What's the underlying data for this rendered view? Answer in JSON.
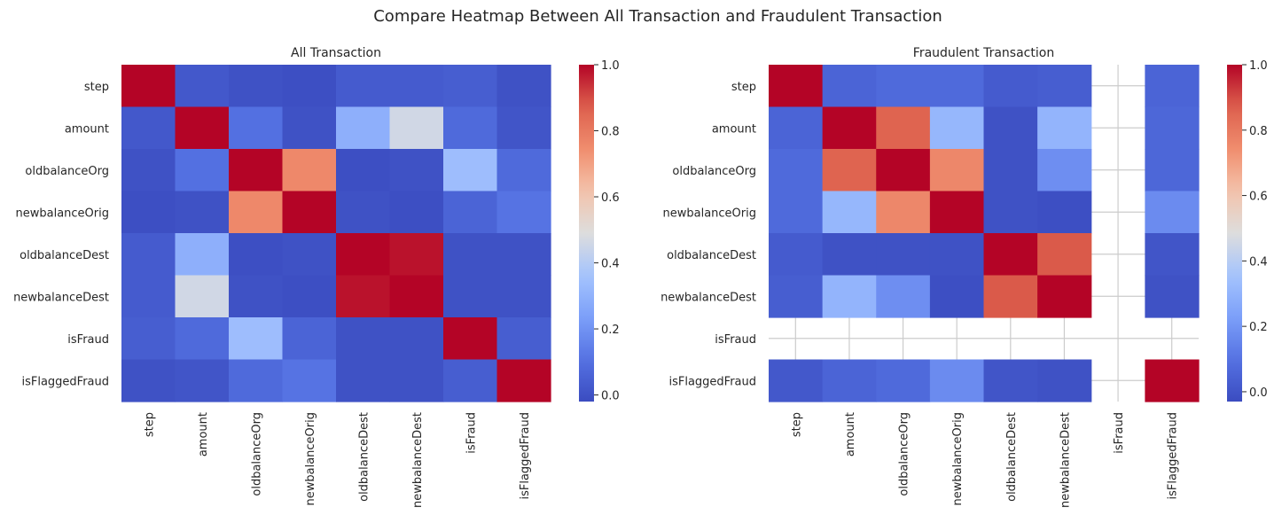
{
  "figure": {
    "title": "Compare Heatmap Between All Transaction and Fraudulent Transaction"
  },
  "chart_data": [
    {
      "type": "heatmap",
      "title": "All Transaction",
      "colormap": "coolwarm",
      "rows": [
        "step",
        "amount",
        "oldbalanceOrg",
        "newbalanceOrig",
        "oldbalanceDest",
        "newbalanceDest",
        "isFraud",
        "isFlaggedFraud"
      ],
      "cols": [
        "step",
        "amount",
        "oldbalanceOrg",
        "newbalanceOrig",
        "oldbalanceDest",
        "newbalanceDest",
        "isFraud",
        "isFlaggedFraud"
      ],
      "values": [
        [
          1.0,
          0.02,
          0.0,
          -0.01,
          0.03,
          0.03,
          0.04,
          0.0
        ],
        [
          0.02,
          1.0,
          0.1,
          0.0,
          0.29,
          0.46,
          0.08,
          0.01
        ],
        [
          0.0,
          0.1,
          1.0,
          0.76,
          -0.01,
          0.0,
          0.34,
          0.08
        ],
        [
          -0.01,
          0.0,
          0.76,
          1.0,
          0.0,
          -0.01,
          0.06,
          0.11
        ],
        [
          0.03,
          0.29,
          -0.01,
          0.0,
          1.0,
          0.98,
          0.0,
          0.0
        ],
        [
          0.03,
          0.46,
          0.0,
          -0.01,
          0.98,
          1.0,
          0.0,
          0.0
        ],
        [
          0.04,
          0.08,
          0.34,
          0.06,
          0.0,
          0.0,
          1.0,
          0.04
        ],
        [
          0.0,
          0.01,
          0.08,
          0.11,
          0.0,
          0.0,
          0.04,
          1.0
        ]
      ],
      "vmin": -0.02,
      "vmax": 1.0,
      "colorbar": {
        "ticks": [
          0.0,
          0.2,
          0.4,
          0.6,
          0.8,
          1.0
        ],
        "tick_labels": [
          "0.0",
          "0.2",
          "0.4",
          "0.6",
          "0.8",
          "1.0"
        ]
      },
      "grid": false
    },
    {
      "type": "heatmap",
      "title": "Fraudulent Transaction",
      "colormap": "coolwarm",
      "rows": [
        "step",
        "amount",
        "oldbalanceOrg",
        "newbalanceOrig",
        "oldbalanceDest",
        "newbalanceDest",
        "isFraud",
        "isFlaggedFraud"
      ],
      "cols": [
        "step",
        "amount",
        "oldbalanceOrg",
        "newbalanceOrig",
        "oldbalanceDest",
        "newbalanceDest",
        "isFraud",
        "isFlaggedFraud"
      ],
      "values": [
        [
          1.0,
          0.05,
          0.07,
          0.07,
          0.02,
          0.03,
          null,
          0.05
        ],
        [
          0.05,
          1.0,
          0.86,
          0.31,
          -0.01,
          0.3,
          null,
          0.06
        ],
        [
          0.07,
          0.86,
          1.0,
          0.76,
          -0.01,
          0.18,
          null,
          0.06
        ],
        [
          0.07,
          0.31,
          0.76,
          1.0,
          -0.01,
          -0.02,
          null,
          0.17
        ],
        [
          0.02,
          -0.01,
          -0.01,
          -0.01,
          1.0,
          0.88,
          null,
          0.0
        ],
        [
          0.03,
          0.3,
          0.18,
          -0.02,
          0.88,
          1.0,
          null,
          -0.01
        ],
        [
          null,
          null,
          null,
          null,
          null,
          null,
          null,
          null
        ],
        [
          0.01,
          0.05,
          0.07,
          0.17,
          0.0,
          -0.01,
          null,
          1.0
        ]
      ],
      "vmin": -0.03,
      "vmax": 1.0,
      "colorbar": {
        "ticks": [
          0.0,
          0.2,
          0.4,
          0.6,
          0.8,
          1.0
        ],
        "tick_labels": [
          "0.0",
          "0.2",
          "0.4",
          "0.6",
          "0.8",
          "1.0"
        ]
      },
      "grid": true
    }
  ]
}
